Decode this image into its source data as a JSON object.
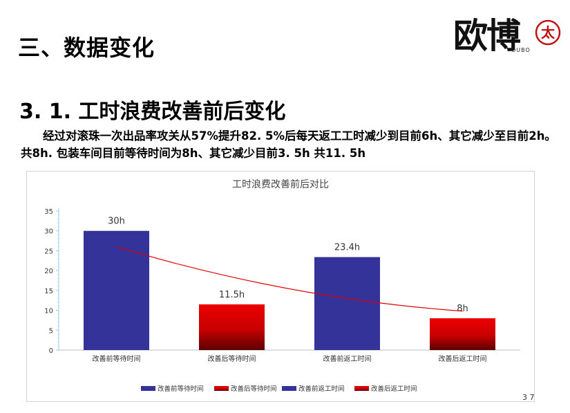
{
  "heading": "三、数据变化",
  "subheading": "3. 1. 工时浪费改善前后变化",
  "paragraph": "经过对滚珠一次出品率攻关从57%提升82. 5%后每天返工工时减少到目前6h、其它减少至目前2h。共8h. 包装车间目前等待时间为8h、其它减少目前3. 5h 共11. 5h",
  "logo": {
    "text": "欧博",
    "sub": "OUBO",
    "seal_text": "太"
  },
  "page_number": "3 7",
  "colors": {
    "blue": "#333399",
    "red": "#e00000",
    "dark_red": "#6a0000",
    "trend": "#dd0000"
  },
  "chart_data": {
    "type": "bar",
    "title": "工时浪费改善前后对比",
    "categories": [
      "改善前等待时间",
      "改善后等待时间",
      "改善前返工时间",
      "改善后返工时间"
    ],
    "values": [
      30,
      11.5,
      23.4,
      8
    ],
    "data_labels": [
      "30h",
      "11.5h",
      "23.4h",
      "8h"
    ],
    "bar_styles": [
      "blue",
      "red-gradient",
      "blue",
      "red-gradient"
    ],
    "ylim": [
      0,
      35
    ],
    "yticks": [
      0,
      5,
      10,
      15,
      20,
      25,
      30,
      35
    ],
    "trendline": {
      "type": "curve",
      "start": 26,
      "end": 9.8
    },
    "legend": {
      "placement": "bottom",
      "entries": [
        "改善前等待时间",
        "改善后等待时间",
        "改善前返工时间",
        "改善后返工时间"
      ]
    },
    "grid": false
  }
}
